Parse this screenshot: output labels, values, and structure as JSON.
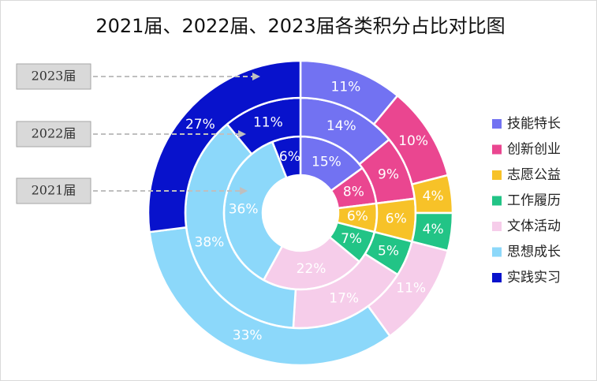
{
  "chart_data": {
    "type": "donut",
    "title": "2021届、2022届、2023届各类积分占比对比图",
    "categories": [
      "技能特长",
      "创新创业",
      "志愿公益",
      "工作履历",
      "文体活动",
      "思想成长",
      "实践实习"
    ],
    "colors": [
      "#7272f2",
      "#ea4690",
      "#f7c228",
      "#22c486",
      "#f6cdea",
      "#8cd8fa",
      "#0812cc"
    ],
    "series": [
      {
        "name": "2021届",
        "values": [
          15,
          8,
          6,
          7,
          22,
          36,
          6
        ],
        "value_labels": [
          "15%",
          "8%",
          "6%",
          "7%",
          "22%",
          "36%",
          "6%"
        ]
      },
      {
        "name": "2022届",
        "values": [
          14,
          9,
          6,
          5,
          17,
          38,
          11
        ],
        "value_labels": [
          "14%",
          "9%",
          "6%",
          "5%",
          "17%",
          "38%",
          "11%"
        ]
      },
      {
        "name": "2023届",
        "values": [
          11,
          10,
          4,
          4,
          11,
          33,
          27
        ],
        "value_labels": [
          "11%",
          "10%",
          "4%",
          "4%",
          "11%",
          "33%",
          "27%"
        ]
      }
    ],
    "legend": "right"
  }
}
